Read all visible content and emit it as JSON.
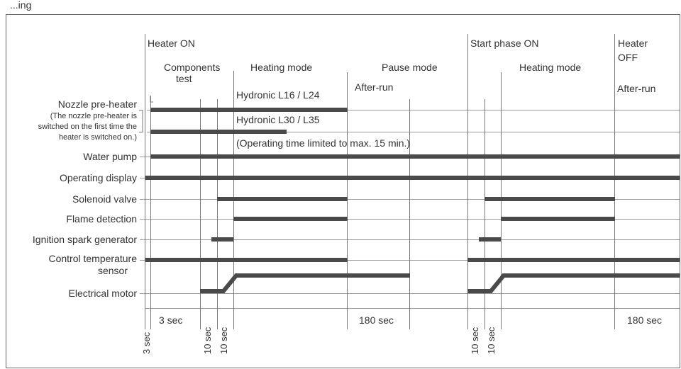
{
  "header_fragment": "...ing",
  "phase_labels": {
    "heater_on": "Heater ON",
    "components_test_1": "Components",
    "components_test_2": "test",
    "heating_mode_1": "Heating mode",
    "pause_mode": "Pause mode",
    "after_run_1": "After-run",
    "start_phase_on": "Start phase ON",
    "heating_mode_2": "Heating mode",
    "heater_off_1": "Heater",
    "heater_off_2": "OFF",
    "after_run_2": "After-run"
  },
  "annotations": {
    "hydronic_l16_l24": "Hydronic L16 / L24",
    "hydronic_l30_l35": "Hydronic L30 / L35",
    "operating_time": "(Operating time limited to max. 15 min.)"
  },
  "rows": {
    "nozzle_preheater": "Nozzle pre-heater",
    "nozzle_note_1": "(The nozzle pre-heater is",
    "nozzle_note_2": "switched on the first time the",
    "nozzle_note_3": "heater is switched on.)",
    "water_pump": "Water pump",
    "operating_display": "Operating display",
    "solenoid_valve": "Solenoid valve",
    "flame_detection": "Flame detection",
    "ignition_spark_generator": "Ignition spark generator",
    "control_temp_1": "Control temperature",
    "control_temp_2": "sensor",
    "electrical_motor": "Electrical motor"
  },
  "durations": {
    "three_sec_vertical": "3 sec",
    "three_sec": "3 sec",
    "ten_sec_a": "10 sec",
    "ten_sec_b": "10 sec",
    "one_eighty_a": "180 sec",
    "ten_sec_c": "10 sec",
    "ten_sec_d": "10 sec",
    "one_eighty_b": "180 sec"
  },
  "colors": {
    "bar": "#4a4a4a",
    "line": "#888888",
    "text": "#333333"
  }
}
